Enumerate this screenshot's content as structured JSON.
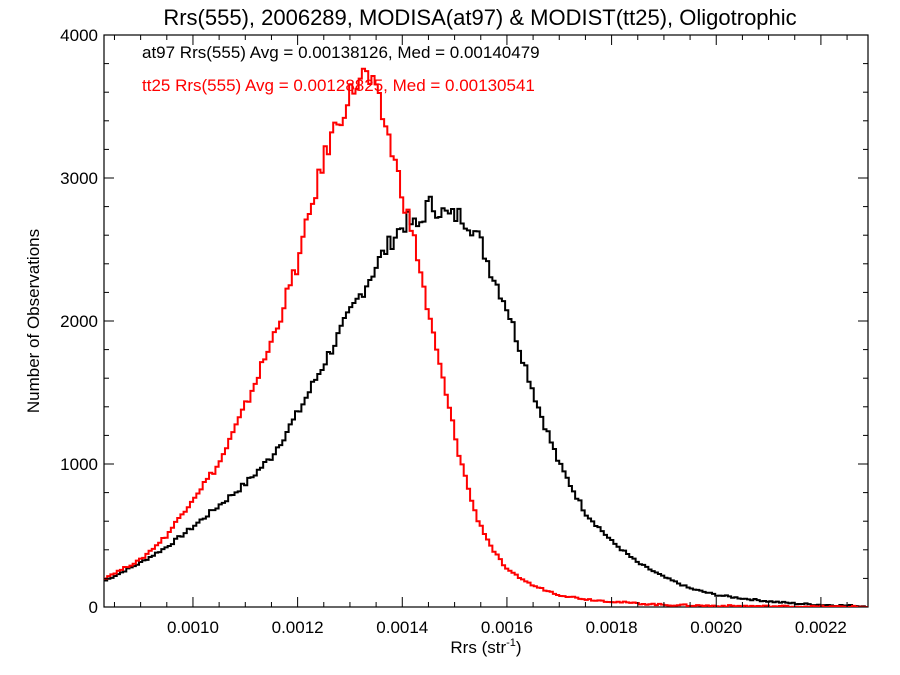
{
  "chart_data": {
    "type": "line",
    "style": "step-histogram",
    "title": "Rrs(555), 2006289, MODISA(at97) & MODIST(tt25), Oligotrophic",
    "xlabel": "Rrs (str",
    "xlabel_superscript": "-1",
    "xlabel_suffix": ")",
    "ylabel": "Number of Observations",
    "xlim": [
      0.00083,
      0.00229
    ],
    "ylim": [
      0,
      4000
    ],
    "xticks": [
      0.001,
      0.0012,
      0.0014,
      0.0016,
      0.0018,
      0.002,
      0.0022
    ],
    "xtick_labels": [
      "0.0010",
      "0.0012",
      "0.0014",
      "0.0016",
      "0.0018",
      "0.0020",
      "0.0022"
    ],
    "yticks": [
      0,
      1000,
      2000,
      3000,
      4000
    ],
    "ytick_labels": [
      "0",
      "1000",
      "2000",
      "3000",
      "4000"
    ],
    "grid": false,
    "legend": "top-left text annotations",
    "annotations": [
      {
        "text": "at97 Rrs(555) Avg = 0.00138126, Med = 0.00140479",
        "color": "#000000"
      },
      {
        "text": "tt25 Rrs(555) Avg = 0.00128825, Med = 0.00130541",
        "color": "#ff0000"
      }
    ],
    "series": [
      {
        "name": "at97",
        "color": "#000000",
        "x": [
          0.00083,
          0.0009,
          0.00095,
          0.001,
          0.00105,
          0.0011,
          0.00115,
          0.0012,
          0.00125,
          0.0013,
          0.00133,
          0.00136,
          0.00139,
          0.00141,
          0.00143,
          0.00145,
          0.00147,
          0.00149,
          0.00151,
          0.00153,
          0.00155,
          0.00157,
          0.0016,
          0.00163,
          0.00166,
          0.0017,
          0.00175,
          0.0018,
          0.00185,
          0.0019,
          0.00195,
          0.002,
          0.00205,
          0.0021,
          0.00215,
          0.0022,
          0.00225,
          0.00229
        ],
        "y": [
          180,
          310,
          420,
          560,
          710,
          860,
          1050,
          1350,
          1700,
          2050,
          2250,
          2450,
          2620,
          2700,
          2650,
          2820,
          2780,
          2730,
          2740,
          2680,
          2550,
          2350,
          2100,
          1750,
          1400,
          1000,
          660,
          460,
          310,
          210,
          130,
          85,
          60,
          40,
          25,
          15,
          10,
          5
        ]
      },
      {
        "name": "tt25",
        "color": "#ff0000",
        "x": [
          0.00083,
          0.0009,
          0.00095,
          0.001,
          0.00105,
          0.0011,
          0.00115,
          0.0012,
          0.00123,
          0.00126,
          0.00129,
          0.00131,
          0.00133,
          0.00135,
          0.00137,
          0.00139,
          0.00141,
          0.00143,
          0.00145,
          0.00148,
          0.00151,
          0.00154,
          0.00157,
          0.0016,
          0.00165,
          0.0017,
          0.00175,
          0.0018,
          0.00185,
          0.0019,
          0.002,
          0.0021,
          0.0022,
          0.00229
        ],
        "y": [
          200,
          330,
          500,
          760,
          1000,
          1400,
          1850,
          2400,
          2850,
          3250,
          3500,
          3650,
          3730,
          3580,
          3350,
          3050,
          2750,
          2450,
          2050,
          1550,
          1050,
          650,
          420,
          260,
          150,
          85,
          55,
          38,
          25,
          15,
          8,
          5,
          3,
          2
        ]
      }
    ]
  }
}
